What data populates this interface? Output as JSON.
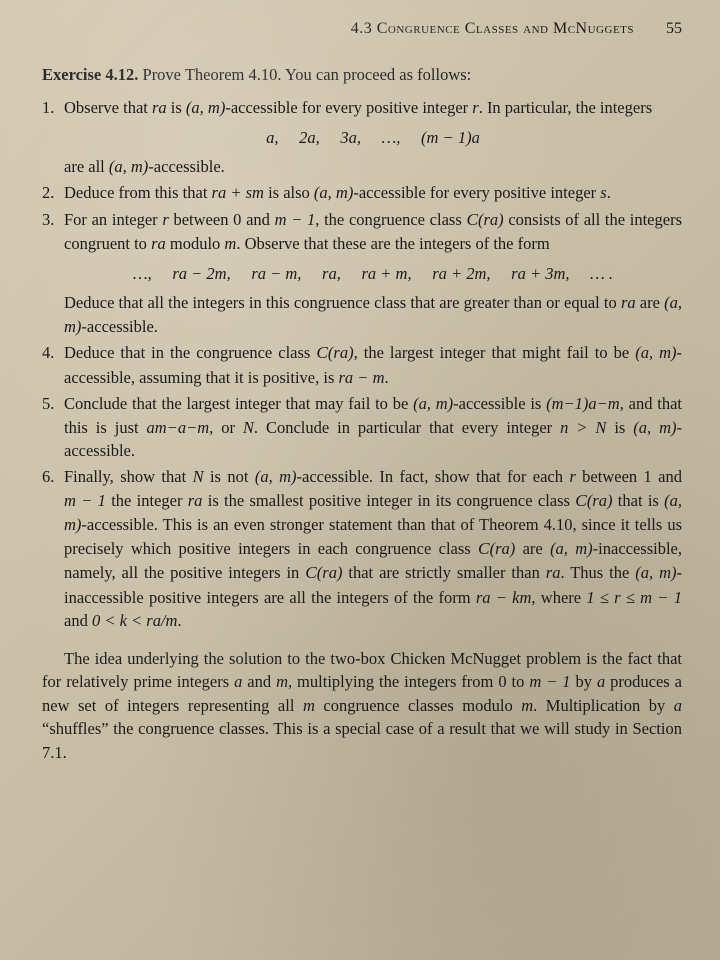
{
  "header": {
    "section": "4.3 Congruence Classes and McNuggets",
    "page": "55"
  },
  "exercise": {
    "label": "Exercise 4.12.",
    "intro": "Prove Theorem 4.10. You can proceed as follows:"
  },
  "step1": {
    "a": "Observe that ",
    "b": " is ",
    "c": "-accessible for every positive integer ",
    "d": ". In particular, the integers",
    "seq": "a,  2a,  3a,  …,  (m − 1)a",
    "e": "are all ",
    "f": "-accessible."
  },
  "step2": {
    "a": "Deduce from this that ",
    "b": " is also ",
    "c": "-accessible for every positive integer "
  },
  "step3": {
    "a": "For an integer ",
    "b": " between 0 and ",
    "c": ", the congruence class ",
    "d": " consists of all the integers congruent to ",
    "e": " modulo ",
    "f": ". Observe that these are the integers of the form",
    "seq": "…,  ra − 2m,  ra − m,  ra,  ra + m,  ra + 2m,  ra + 3m,  … .",
    "g": "Deduce that all the integers in this congruence class that are greater than or equal to ",
    "h": " are ",
    "i": "-accessible."
  },
  "step4": {
    "a": "Deduce that in the congruence class ",
    "b": ", the largest integer that might fail to be ",
    "c": "-accessible, assuming that it is positive, is "
  },
  "step5": {
    "a": "Conclude that the largest integer that may fail to be ",
    "b": "-accessible is ",
    "c": ", and that this is just ",
    "d": ", or ",
    "e": ". Conclude in particular that every integer ",
    "f": " is ",
    "g": "-accessible."
  },
  "step6": {
    "a": "Finally, show that ",
    "b": " is not ",
    "c": "-accessible. In fact, show that for each ",
    "d": " between 1 and ",
    "e": " the integer ",
    "f": " is the smallest positive integer in its congruence class ",
    "g": " that is ",
    "h": "-accessible. This is an even stronger statement than that of Theorem 4.10, since it tells us precisely which positive integers in each congruence class ",
    "i": " are ",
    "j": "-inaccessible, namely, all the positive integers in ",
    "k": " that are strictly smaller than ",
    "l": ". Thus the ",
    "m": "-inaccessible positive integers are all the integers of the form ",
    "n": ", where ",
    "o": " and "
  },
  "closing": {
    "a": "The idea underlying the solution to the two-box Chicken McNugget problem is the fact that for relatively prime integers ",
    "b": " and ",
    "c": ", multiplying the integers from 0 to ",
    "d": " by ",
    "e": " produces a new set of integers representing all ",
    "f": " congruence classes modulo ",
    "g": ". Multiplication by ",
    "h": " “shuffles” the congruence classes. This is a special case of a result that we will study in Section 7.1."
  },
  "math": {
    "ra": "ra",
    "am": "(a, m)",
    "r": "r",
    "s": "s",
    "m": "m",
    "a": "a",
    "N": "N",
    "ra_plus_sm": "ra + sm",
    "m_minus_1": "m − 1",
    "Cra": "(ra)",
    "ra_minus_m": "ra − m",
    "m1a_minus_m": "(m−1)a−m",
    "am_a_m": "am−a−m",
    "n_gt_N": "n > N",
    "ra_minus_km": "ra − km",
    "r_bounds": "1 ≤ r ≤ m − 1",
    "k_bounds": "0 < k < ra/m",
    "period": "."
  }
}
